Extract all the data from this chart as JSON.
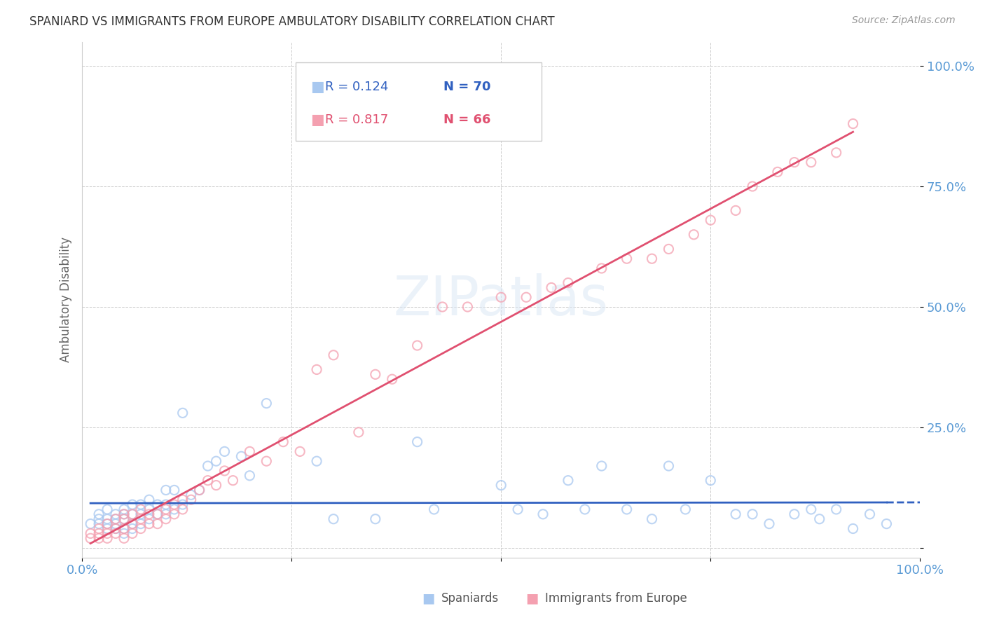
{
  "title": "SPANIARD VS IMMIGRANTS FROM EUROPE AMBULATORY DISABILITY CORRELATION CHART",
  "source": "Source: ZipAtlas.com",
  "ylabel": "Ambulatory Disability",
  "xlim": [
    0.0,
    1.0
  ],
  "ylim": [
    -0.02,
    1.05
  ],
  "yticks": [
    0.0,
    0.25,
    0.5,
    0.75,
    1.0
  ],
  "ytick_labels": [
    "",
    "25.0%",
    "50.0%",
    "75.0%",
    "100.0%"
  ],
  "xticks": [
    0.0,
    0.25,
    0.5,
    0.75,
    1.0
  ],
  "xtick_labels": [
    "0.0%",
    "",
    "",
    "",
    "100.0%"
  ],
  "legend_r1": "R = 0.124",
  "legend_n1": "N = 70",
  "legend_r2": "R = 0.817",
  "legend_n2": "N = 66",
  "blue_color": "#a8c8f0",
  "pink_color": "#f4a0b0",
  "blue_line_color": "#3060c0",
  "pink_line_color": "#e05070",
  "axis_color": "#5b9bd5",
  "watermark": "ZIPatlas",
  "spaniards_x": [
    0.01,
    0.02,
    0.02,
    0.02,
    0.03,
    0.03,
    0.03,
    0.03,
    0.04,
    0.04,
    0.04,
    0.04,
    0.05,
    0.05,
    0.05,
    0.05,
    0.05,
    0.06,
    0.06,
    0.06,
    0.06,
    0.07,
    0.07,
    0.07,
    0.08,
    0.08,
    0.08,
    0.09,
    0.09,
    0.1,
    0.1,
    0.1,
    0.11,
    0.11,
    0.12,
    0.12,
    0.13,
    0.14,
    0.15,
    0.16,
    0.17,
    0.19,
    0.2,
    0.22,
    0.28,
    0.3,
    0.35,
    0.4,
    0.42,
    0.5,
    0.52,
    0.55,
    0.58,
    0.6,
    0.62,
    0.65,
    0.68,
    0.7,
    0.72,
    0.75,
    0.78,
    0.8,
    0.82,
    0.85,
    0.87,
    0.88,
    0.9,
    0.92,
    0.94,
    0.96
  ],
  "spaniards_y": [
    0.05,
    0.05,
    0.06,
    0.07,
    0.04,
    0.05,
    0.06,
    0.08,
    0.04,
    0.05,
    0.06,
    0.07,
    0.03,
    0.04,
    0.06,
    0.07,
    0.08,
    0.04,
    0.05,
    0.07,
    0.09,
    0.05,
    0.07,
    0.09,
    0.06,
    0.08,
    0.1,
    0.07,
    0.09,
    0.07,
    0.09,
    0.12,
    0.08,
    0.12,
    0.09,
    0.28,
    0.11,
    0.12,
    0.17,
    0.18,
    0.2,
    0.19,
    0.15,
    0.3,
    0.18,
    0.06,
    0.06,
    0.22,
    0.08,
    0.13,
    0.08,
    0.07,
    0.14,
    0.08,
    0.17,
    0.08,
    0.06,
    0.17,
    0.08,
    0.14,
    0.07,
    0.07,
    0.05,
    0.07,
    0.08,
    0.06,
    0.08,
    0.04,
    0.07,
    0.05
  ],
  "europe_x": [
    0.01,
    0.01,
    0.02,
    0.02,
    0.02,
    0.03,
    0.03,
    0.03,
    0.04,
    0.04,
    0.04,
    0.05,
    0.05,
    0.05,
    0.05,
    0.06,
    0.06,
    0.06,
    0.07,
    0.07,
    0.07,
    0.08,
    0.08,
    0.09,
    0.09,
    0.1,
    0.1,
    0.11,
    0.11,
    0.12,
    0.12,
    0.13,
    0.14,
    0.15,
    0.16,
    0.17,
    0.18,
    0.2,
    0.22,
    0.24,
    0.26,
    0.28,
    0.3,
    0.33,
    0.35,
    0.37,
    0.4,
    0.43,
    0.46,
    0.5,
    0.53,
    0.56,
    0.58,
    0.62,
    0.65,
    0.68,
    0.7,
    0.73,
    0.75,
    0.78,
    0.8,
    0.83,
    0.85,
    0.87,
    0.9,
    0.92
  ],
  "europe_y": [
    0.02,
    0.03,
    0.02,
    0.03,
    0.04,
    0.02,
    0.03,
    0.05,
    0.03,
    0.04,
    0.06,
    0.02,
    0.04,
    0.06,
    0.07,
    0.03,
    0.05,
    0.07,
    0.04,
    0.06,
    0.08,
    0.05,
    0.07,
    0.05,
    0.07,
    0.06,
    0.08,
    0.07,
    0.09,
    0.08,
    0.1,
    0.1,
    0.12,
    0.14,
    0.13,
    0.16,
    0.14,
    0.2,
    0.18,
    0.22,
    0.2,
    0.37,
    0.4,
    0.24,
    0.36,
    0.35,
    0.42,
    0.5,
    0.5,
    0.52,
    0.52,
    0.54,
    0.55,
    0.58,
    0.6,
    0.6,
    0.62,
    0.65,
    0.68,
    0.7,
    0.75,
    0.78,
    0.8,
    0.8,
    0.82,
    0.88
  ]
}
